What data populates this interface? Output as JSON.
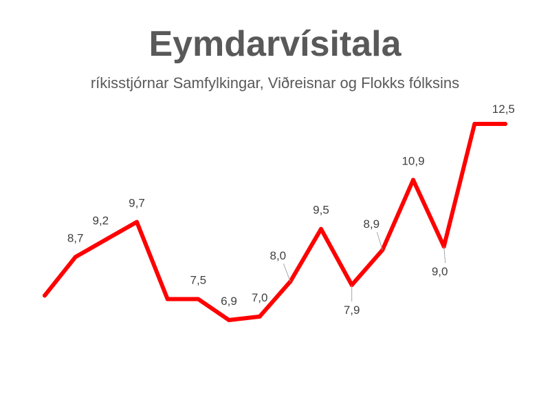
{
  "title": "Eymdarvísitala",
  "subtitle": "ríkisstjórnar Samfylkingar, Viðreisnar og Flokks fólksins",
  "colors": {
    "line": "#ff0000",
    "text": "#595959",
    "label": "#404040",
    "leader": "#a6a6a6"
  },
  "chart_data": {
    "type": "line",
    "title": "Eymdarvísitala",
    "subtitle": "ríkisstjórnar Samfylkingar, Viðreisnar og Flokks fólksins",
    "xlabel": "",
    "ylabel": "",
    "grid": false,
    "legend": "none",
    "ylim": [
      4.5,
      13.5
    ],
    "values": [
      7.6,
      8.7,
      9.2,
      9.7,
      7.5,
      7.5,
      6.9,
      7.0,
      8.0,
      9.5,
      7.9,
      8.9,
      10.9,
      9.0,
      12.5,
      12.5
    ],
    "data_labels": [
      "",
      "8,7",
      "9,2",
      "9,7",
      "",
      "7,5",
      "6,9",
      "7,0",
      "8,0",
      "9,5",
      "7,9",
      "8,9",
      "10,9",
      "9,0",
      "12,5",
      ""
    ]
  }
}
